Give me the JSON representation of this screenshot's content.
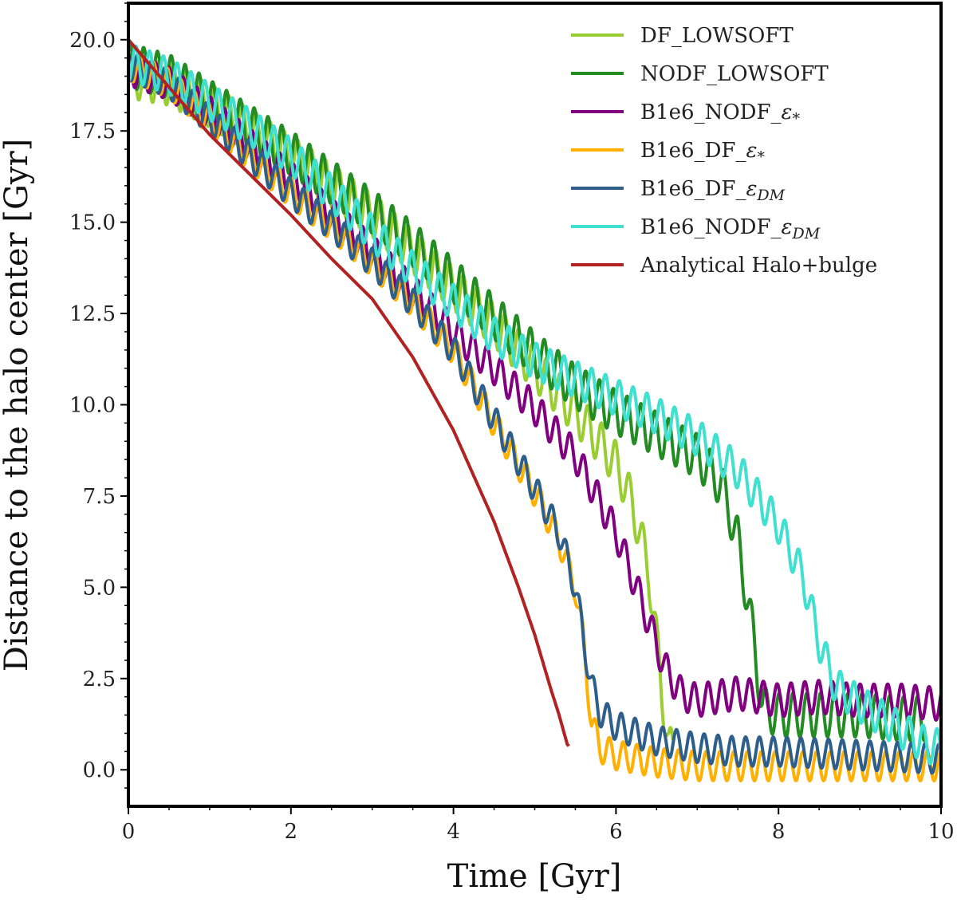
{
  "chart_data": {
    "type": "line",
    "title": "",
    "xlabel": "Time [Gyr]",
    "ylabel": "Distance to the halo center [Gyr]",
    "xlim": [
      0,
      10
    ],
    "ylim": [
      -1.0,
      21.0
    ],
    "xticks": [
      0,
      2,
      4,
      6,
      8,
      10
    ],
    "xtick_labels": [
      "0",
      "2",
      "4",
      "6",
      "8",
      "10"
    ],
    "yticks": [
      0,
      2.5,
      5,
      7.5,
      10,
      12.5,
      15,
      17.5,
      20
    ],
    "ytick_labels": [
      "0.0",
      "2.5",
      "5.0",
      "7.5",
      "10.0",
      "12.5",
      "15.0",
      "17.5",
      "20.0"
    ],
    "grid": false,
    "legend_position": "top-right",
    "series": [
      {
        "name": "DF_LOWSOFT",
        "label_parts": [
          "DF_LOWSOFT"
        ],
        "color": "#9acd32",
        "oscillation_amplitude": 0.6,
        "oscillation_period": 0.17,
        "x": [
          0,
          0.5,
          1.0,
          1.5,
          2.0,
          2.5,
          3.0,
          3.5,
          4.0,
          4.5,
          5.0,
          5.5,
          6.0,
          6.2,
          6.4,
          6.5,
          6.6,
          6.65,
          6.7
        ],
        "y": [
          19.0,
          18.8,
          18.2,
          17.5,
          16.8,
          16.0,
          15.2,
          14.2,
          13.2,
          12.2,
          11.0,
          9.8,
          8.4,
          7.3,
          5.5,
          3.5,
          1.5,
          0.6,
          0.5
        ]
      },
      {
        "name": "NODF_LOWSOFT",
        "label_parts": [
          "NODF_LOWSOFT"
        ],
        "color": "#228b22",
        "oscillation_amplitude": 0.6,
        "oscillation_period": 0.17,
        "x": [
          0,
          0.5,
          1.0,
          1.5,
          2.0,
          2.5,
          3.0,
          3.5,
          4.0,
          4.5,
          5.0,
          5.5,
          6.0,
          6.5,
          7.0,
          7.3,
          7.5,
          7.7,
          7.8,
          8.0,
          8.5,
          9.0,
          9.5,
          9.8
        ],
        "y": [
          19.3,
          19.0,
          18.3,
          17.6,
          16.9,
          16.1,
          15.3,
          14.4,
          13.4,
          12.4,
          11.4,
          10.5,
          9.8,
          9.2,
          8.6,
          7.8,
          6.3,
          3.5,
          1.7,
          1.5,
          1.5,
          1.5,
          1.4,
          1.4
        ]
      },
      {
        "name": "B1e6_NODF_ε*",
        "label_parts": [
          "B1e6_NODF_",
          "ε",
          "*"
        ],
        "color": "#800080",
        "oscillation_amplitude": 0.45,
        "oscillation_period": 0.17,
        "x": [
          0,
          0.5,
          1.0,
          1.5,
          2.0,
          2.5,
          3.0,
          3.5,
          4.0,
          4.5,
          5.0,
          5.5,
          6.0,
          6.3,
          6.6,
          6.8,
          7.0,
          7.5,
          8.0,
          8.5,
          9.0,
          9.5,
          10.0
        ],
        "y": [
          19.2,
          18.8,
          18.0,
          17.1,
          16.2,
          15.2,
          14.2,
          13.1,
          12.0,
          11.0,
          9.9,
          8.6,
          6.5,
          4.7,
          2.8,
          2.1,
          1.9,
          2.1,
          1.9,
          2.0,
          1.9,
          1.9,
          1.8
        ]
      },
      {
        "name": "B1e6_DF_ε*",
        "label_parts": [
          "B1e6_DF_",
          "ε",
          "*"
        ],
        "color": "#ffb000",
        "oscillation_amplitude": 0.4,
        "oscillation_period": 0.17,
        "x": [
          0,
          0.5,
          1.0,
          1.5,
          2.0,
          2.5,
          3.0,
          3.5,
          4.0,
          4.5,
          5.0,
          5.3,
          5.5,
          5.6,
          5.7,
          5.8,
          6.0,
          6.5,
          7.0,
          8.0,
          9.0,
          10.0
        ],
        "y": [
          19.3,
          18.8,
          17.8,
          16.8,
          15.8,
          14.9,
          13.9,
          12.8,
          11.5,
          9.5,
          7.6,
          6.3,
          5.0,
          3.5,
          1.3,
          0.6,
          0.4,
          0.2,
          0.1,
          0.1,
          0.1,
          0.1
        ]
      },
      {
        "name": "B1e6_DF_εDM",
        "label_parts": [
          "B1e6_DF_",
          "ε",
          "DM"
        ],
        "color": "#2e5e8a",
        "oscillation_amplitude": 0.4,
        "oscillation_period": 0.17,
        "x": [
          0,
          0.5,
          1.0,
          1.5,
          2.0,
          2.5,
          3.0,
          3.5,
          4.0,
          4.5,
          5.0,
          5.3,
          5.5,
          5.6,
          5.7,
          5.8,
          6.0,
          6.5,
          7.0,
          7.5,
          8.0,
          9.0,
          10.0
        ],
        "y": [
          19.3,
          18.8,
          17.8,
          16.8,
          15.8,
          14.9,
          13.9,
          12.8,
          11.5,
          9.6,
          7.7,
          6.5,
          5.0,
          3.6,
          2.3,
          1.6,
          1.2,
          0.8,
          0.6,
          0.5,
          0.5,
          0.4,
          0.3
        ]
      },
      {
        "name": "B1e6_NODF_εDM",
        "label_parts": [
          "B1e6_NODF_",
          "ε",
          "DM"
        ],
        "color": "#40e0d0",
        "oscillation_amplitude": 0.5,
        "oscillation_period": 0.17,
        "x": [
          0,
          0.5,
          1.0,
          1.5,
          2.0,
          2.5,
          3.0,
          3.5,
          4.0,
          4.5,
          5.0,
          5.5,
          6.0,
          6.5,
          7.0,
          7.5,
          8.0,
          8.3,
          8.5,
          8.7,
          9.0,
          9.5,
          9.8,
          10.0
        ],
        "y": [
          19.4,
          19.0,
          18.3,
          17.6,
          16.8,
          15.8,
          14.7,
          13.7,
          12.8,
          11.9,
          11.2,
          10.7,
          10.2,
          9.7,
          9.1,
          8.2,
          6.7,
          5.3,
          3.5,
          2.3,
          1.8,
          1.1,
          0.7,
          0.6
        ]
      },
      {
        "name": "Analytical Halo+bulge",
        "label_parts": [
          "Analytical Halo+bulge"
        ],
        "color": "#b22222",
        "oscillation_amplitude": 0,
        "oscillation_period": 1,
        "x": [
          0,
          0.5,
          1.0,
          1.5,
          2.0,
          2.5,
          3.0,
          3.5,
          4.0,
          4.5,
          4.8,
          5.0,
          5.2,
          5.3,
          5.4,
          5.42
        ],
        "y": [
          20.0,
          18.7,
          17.4,
          16.3,
          15.2,
          14.0,
          12.9,
          11.3,
          9.3,
          6.8,
          5.0,
          3.7,
          2.2,
          1.5,
          0.7,
          0.65
        ]
      }
    ]
  }
}
